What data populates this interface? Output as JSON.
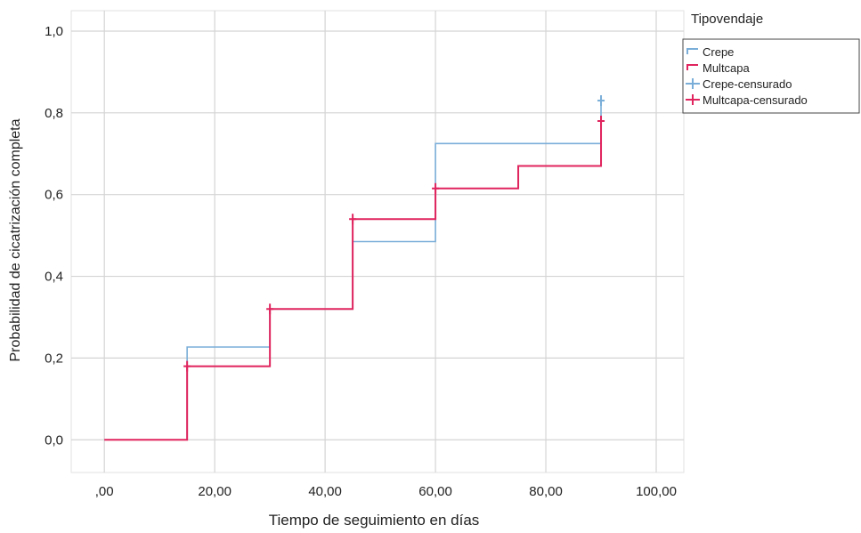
{
  "chart_data": {
    "type": "line",
    "step": true,
    "title": "",
    "xlabel": "Tiempo de seguimiento en días",
    "ylabel": "Probabilidad de cicatrización completa",
    "xlim": [
      -6,
      105
    ],
    "ylim": [
      -0.08,
      1.05
    ],
    "x_ticks": [
      {
        "value": 0,
        "label": ",00"
      },
      {
        "value": 20,
        "label": "20,00"
      },
      {
        "value": 40,
        "label": "40,00"
      },
      {
        "value": 60,
        "label": "60,00"
      },
      {
        "value": 80,
        "label": "80,00"
      },
      {
        "value": 100,
        "label": "100,00"
      }
    ],
    "y_ticks": [
      {
        "value": 0,
        "label": "0,0"
      },
      {
        "value": 0.2,
        "label": "0,2"
      },
      {
        "value": 0.4,
        "label": "0,4"
      },
      {
        "value": 0.6,
        "label": "0,6"
      },
      {
        "value": 0.8,
        "label": "0,8"
      },
      {
        "value": 1.0,
        "label": "1,0"
      }
    ],
    "grid": true,
    "legend": {
      "title": "Tipovendaje",
      "position": "right",
      "entries": [
        {
          "label": "Crepe",
          "kind": "step",
          "series": "crepe"
        },
        {
          "label": "Multcapa",
          "kind": "step",
          "series": "multcapa"
        },
        {
          "label": "Crepe-censurado",
          "kind": "censor",
          "series": "crepe"
        },
        {
          "label": "Multcapa-censurado",
          "kind": "censor",
          "series": "multcapa"
        }
      ]
    },
    "series": [
      {
        "name": "Crepe",
        "key": "crepe",
        "color": "#7aaed8",
        "points": [
          {
            "x": 0,
            "y": 0
          },
          {
            "x": 15,
            "y": 0.227
          },
          {
            "x": 30,
            "y": 0.32
          },
          {
            "x": 45,
            "y": 0.485
          },
          {
            "x": 60,
            "y": 0.725
          },
          {
            "x": 90,
            "y": 0.83
          }
        ],
        "censored": [
          {
            "x": 90,
            "y": 0.83
          }
        ]
      },
      {
        "name": "Multcapa",
        "key": "multcapa",
        "color": "#e0245e",
        "points": [
          {
            "x": 0,
            "y": 0
          },
          {
            "x": 15,
            "y": 0.18
          },
          {
            "x": 30,
            "y": 0.32
          },
          {
            "x": 45,
            "y": 0.54
          },
          {
            "x": 60,
            "y": 0.615
          },
          {
            "x": 75,
            "y": 0.67
          },
          {
            "x": 90,
            "y": 0.78
          }
        ],
        "censored": [
          {
            "x": 15,
            "y": 0.18
          },
          {
            "x": 30,
            "y": 0.32
          },
          {
            "x": 45,
            "y": 0.54
          },
          {
            "x": 60,
            "y": 0.615
          },
          {
            "x": 90,
            "y": 0.78
          }
        ]
      }
    ]
  }
}
